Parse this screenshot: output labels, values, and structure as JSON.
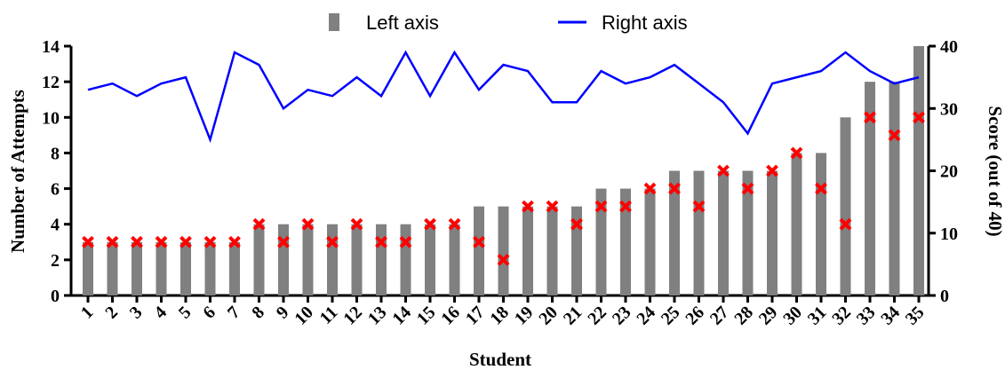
{
  "chart_data": {
    "type": "bar",
    "xlabel": "Student",
    "ylabel": "Number of Attempts",
    "ylabel_right": "Score (out of 40)",
    "ylim": [
      0,
      14
    ],
    "ylim_right": [
      0,
      40
    ],
    "yticks": [
      0,
      2,
      4,
      6,
      8,
      10,
      12,
      14
    ],
    "yticks_right": [
      0,
      10,
      20,
      30,
      40
    ],
    "categories": [
      "1",
      "2",
      "3",
      "4",
      "5",
      "6",
      "7",
      "8",
      "9",
      "10",
      "11",
      "12",
      "13",
      "14",
      "15",
      "16",
      "17",
      "18",
      "19",
      "20",
      "21",
      "22",
      "23",
      "24",
      "25",
      "26",
      "27",
      "28",
      "29",
      "30",
      "31",
      "32",
      "33",
      "34",
      "35"
    ],
    "legend": {
      "placement": "top-center",
      "entries": [
        "Left axis",
        "Right axis"
      ]
    },
    "grid": false,
    "series": [
      {
        "name": "Left axis",
        "type": "bar",
        "axis": "left",
        "color": "#808080",
        "values": [
          3,
          3,
          3,
          3,
          3,
          3,
          3,
          4,
          4,
          4,
          4,
          4,
          4,
          4,
          4,
          4,
          5,
          5,
          5,
          5,
          5,
          6,
          6,
          6,
          7,
          7,
          7,
          7,
          7,
          8,
          8,
          10,
          12,
          12,
          14
        ]
      },
      {
        "type": "scatter",
        "axis": "left",
        "marker": "x",
        "color": "#ff0000",
        "values": [
          3,
          3,
          3,
          3,
          3,
          3,
          3,
          4,
          3,
          4,
          3,
          4,
          3,
          3,
          4,
          4,
          3,
          2,
          5,
          5,
          4,
          5,
          5,
          6,
          6,
          5,
          7,
          6,
          7,
          8,
          6,
          4,
          10,
          9,
          10
        ]
      },
      {
        "name": "Right axis",
        "type": "line",
        "axis": "right",
        "color": "#0000ff",
        "values": [
          33,
          34,
          32,
          34,
          35,
          25,
          39,
          37,
          30,
          33,
          32,
          35,
          32,
          39,
          32,
          39,
          33,
          37,
          36,
          31,
          31,
          36,
          34,
          35,
          37,
          34,
          31,
          26,
          34,
          35,
          36,
          39,
          36,
          34,
          35
        ]
      }
    ]
  }
}
